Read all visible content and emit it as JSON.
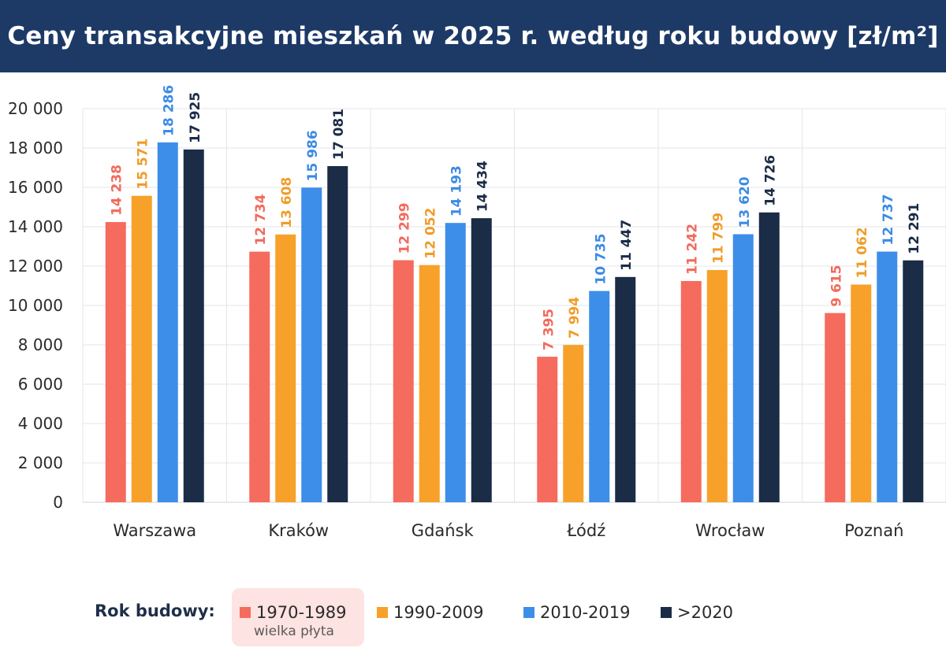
{
  "title": "Ceny transakcyjne mieszkań w 2025 r. według roku budowy [zł/m²]",
  "legend": {
    "title": "Rok budowy:",
    "items": [
      {
        "label": "1970-1989",
        "sublabel": "wielka płyta",
        "color": "#f56b5e"
      },
      {
        "label": "1990-2009",
        "color": "#f7a12a"
      },
      {
        "label": "2010-2019",
        "color": "#3d8ee8"
      },
      {
        "label": ">2020",
        "color": "#1b2c47"
      }
    ]
  },
  "chart_data": {
    "type": "bar",
    "title": "Ceny transakcyjne mieszkań w 2025 r. według roku budowy [zł/m²]",
    "categories": [
      "Warszawa",
      "Kraków",
      "Gdańsk",
      "Łódź",
      "Wrocław",
      "Poznań"
    ],
    "series": [
      {
        "name": "1970-1989",
        "color": "#f56b5e",
        "label_color": "#f26a5c",
        "values": [
          14238,
          12734,
          12299,
          7395,
          11242,
          9615
        ]
      },
      {
        "name": "1990-2009",
        "color": "#f7a12a",
        "label_color": "#f09c28",
        "values": [
          15571,
          13608,
          12052,
          7994,
          11799,
          11062
        ]
      },
      {
        "name": "2010-2019",
        "color": "#3d8ee8",
        "label_color": "#3b8be4",
        "values": [
          18286,
          15986,
          14193,
          10735,
          13620,
          12737
        ]
      },
      {
        "name": ">2020",
        "color": "#1b2c47",
        "label_color": "#1b2c47",
        "values": [
          17925,
          17081,
          14434,
          11447,
          14726,
          12291
        ]
      }
    ],
    "data_labels": [
      [
        "14 238",
        "12 734",
        "12 299",
        "7 395",
        "11 242",
        "9 615"
      ],
      [
        "15 571",
        "13 608",
        "12 052",
        "7 994",
        "11 799",
        "11 062"
      ],
      [
        "18 286",
        "15 986",
        "14 193",
        "10 735",
        "13 620",
        "12 737"
      ],
      [
        "17 925",
        "17 081",
        "14 434",
        "11 447",
        "14 726",
        "12 291"
      ]
    ],
    "yticks": [
      0,
      2000,
      4000,
      6000,
      8000,
      10000,
      12000,
      14000,
      16000,
      18000,
      20000
    ],
    "ytick_labels": [
      "0",
      "2 000",
      "4 000",
      "6 000",
      "8 000",
      "10 000",
      "12 000",
      "14 000",
      "16 000",
      "18 000",
      "20 000"
    ],
    "ylim": [
      0,
      20000
    ],
    "xlabel": "",
    "ylabel": "",
    "grid": true,
    "legend_position": "bottom"
  }
}
